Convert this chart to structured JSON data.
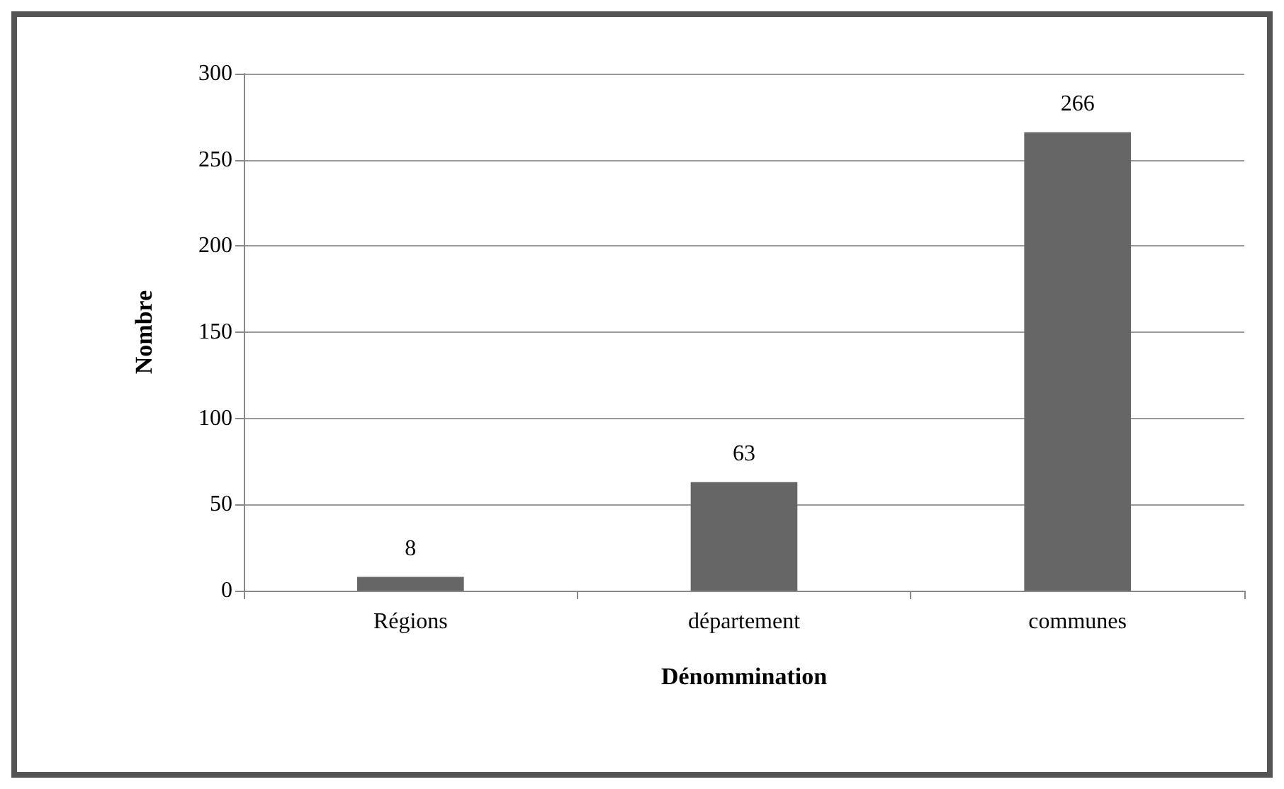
{
  "chart_data": {
    "type": "bar",
    "xlabel": "Dénommination",
    "ylabel": "Nombre",
    "categories": [
      "Régions",
      "département",
      "communes"
    ],
    "values": [
      8,
      63,
      266
    ],
    "color": "#666666",
    "ylim": [
      0,
      300
    ],
    "yticks": [
      0,
      50,
      100,
      150,
      200,
      250,
      300
    ],
    "grid": "y",
    "data_labels": true
  }
}
